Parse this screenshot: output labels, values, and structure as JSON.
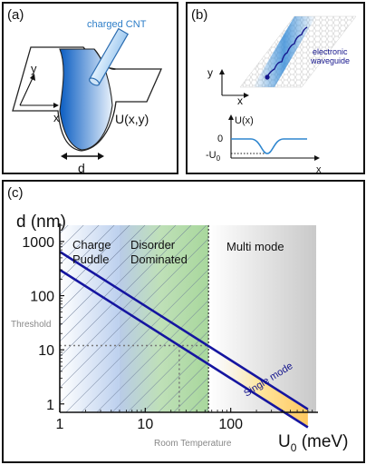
{
  "panel_a": {
    "label": "(a)",
    "cnt_label": "charged CNT",
    "axis_x": "x",
    "axis_y": "y",
    "potential_label": "U(x,y)",
    "width_label": "d"
  },
  "panel_b": {
    "label": "(b)",
    "waveguide_label_line1": "electronic",
    "waveguide_label_line2": "waveguide",
    "axis_x": "x",
    "axis_y": "y",
    "profile_ylabel": "U(x)",
    "profile_xlabel": "x",
    "tick_zero": "0",
    "tick_minus_u0": "-U",
    "tick_minus_u0_sub": "0"
  },
  "panel_c": {
    "label": "(c)",
    "region_1_line1": "Charge",
    "region_1_line2": "Puddle",
    "region_2_line1": "Disorder",
    "region_2_line2": "Dominated",
    "region_3": "Multi mode",
    "single_mode_label": "Single mode",
    "threshold_label": "Threshold",
    "room_temp_label": "Room Temperature"
  },
  "chart_data": {
    "type": "line",
    "xscale": "log",
    "yscale": "log",
    "xlim": [
      1,
      1000
    ],
    "ylim": [
      0.7,
      2000
    ],
    "xlabel": "U",
    "xlabel_sub": "0",
    "xlabel_unit": " (meV)",
    "ylabel": "d (nm)",
    "x_ticks": [
      "1",
      "10",
      "100"
    ],
    "y_ticks": [
      "1",
      "10",
      "100",
      "1000"
    ],
    "series": [
      {
        "x": [
          1,
          800
        ],
        "y": [
          650,
          0.8
        ]
      },
      {
        "x": [
          1,
          800
        ],
        "y": [
          300,
          0.37
        ]
      }
    ],
    "threshold_d": 12,
    "room_temperature_u0": 25,
    "charge_puddle_limit_u0": 5,
    "disorder_limit_u0": 55
  },
  "colors": {
    "line": "#1515a0",
    "hatch_fill": "#c9d4ea",
    "disorder_fill": "#a8d79c",
    "multimode_fill": "#d3d3d3",
    "single_mode_fill": "#ffd97a"
  }
}
